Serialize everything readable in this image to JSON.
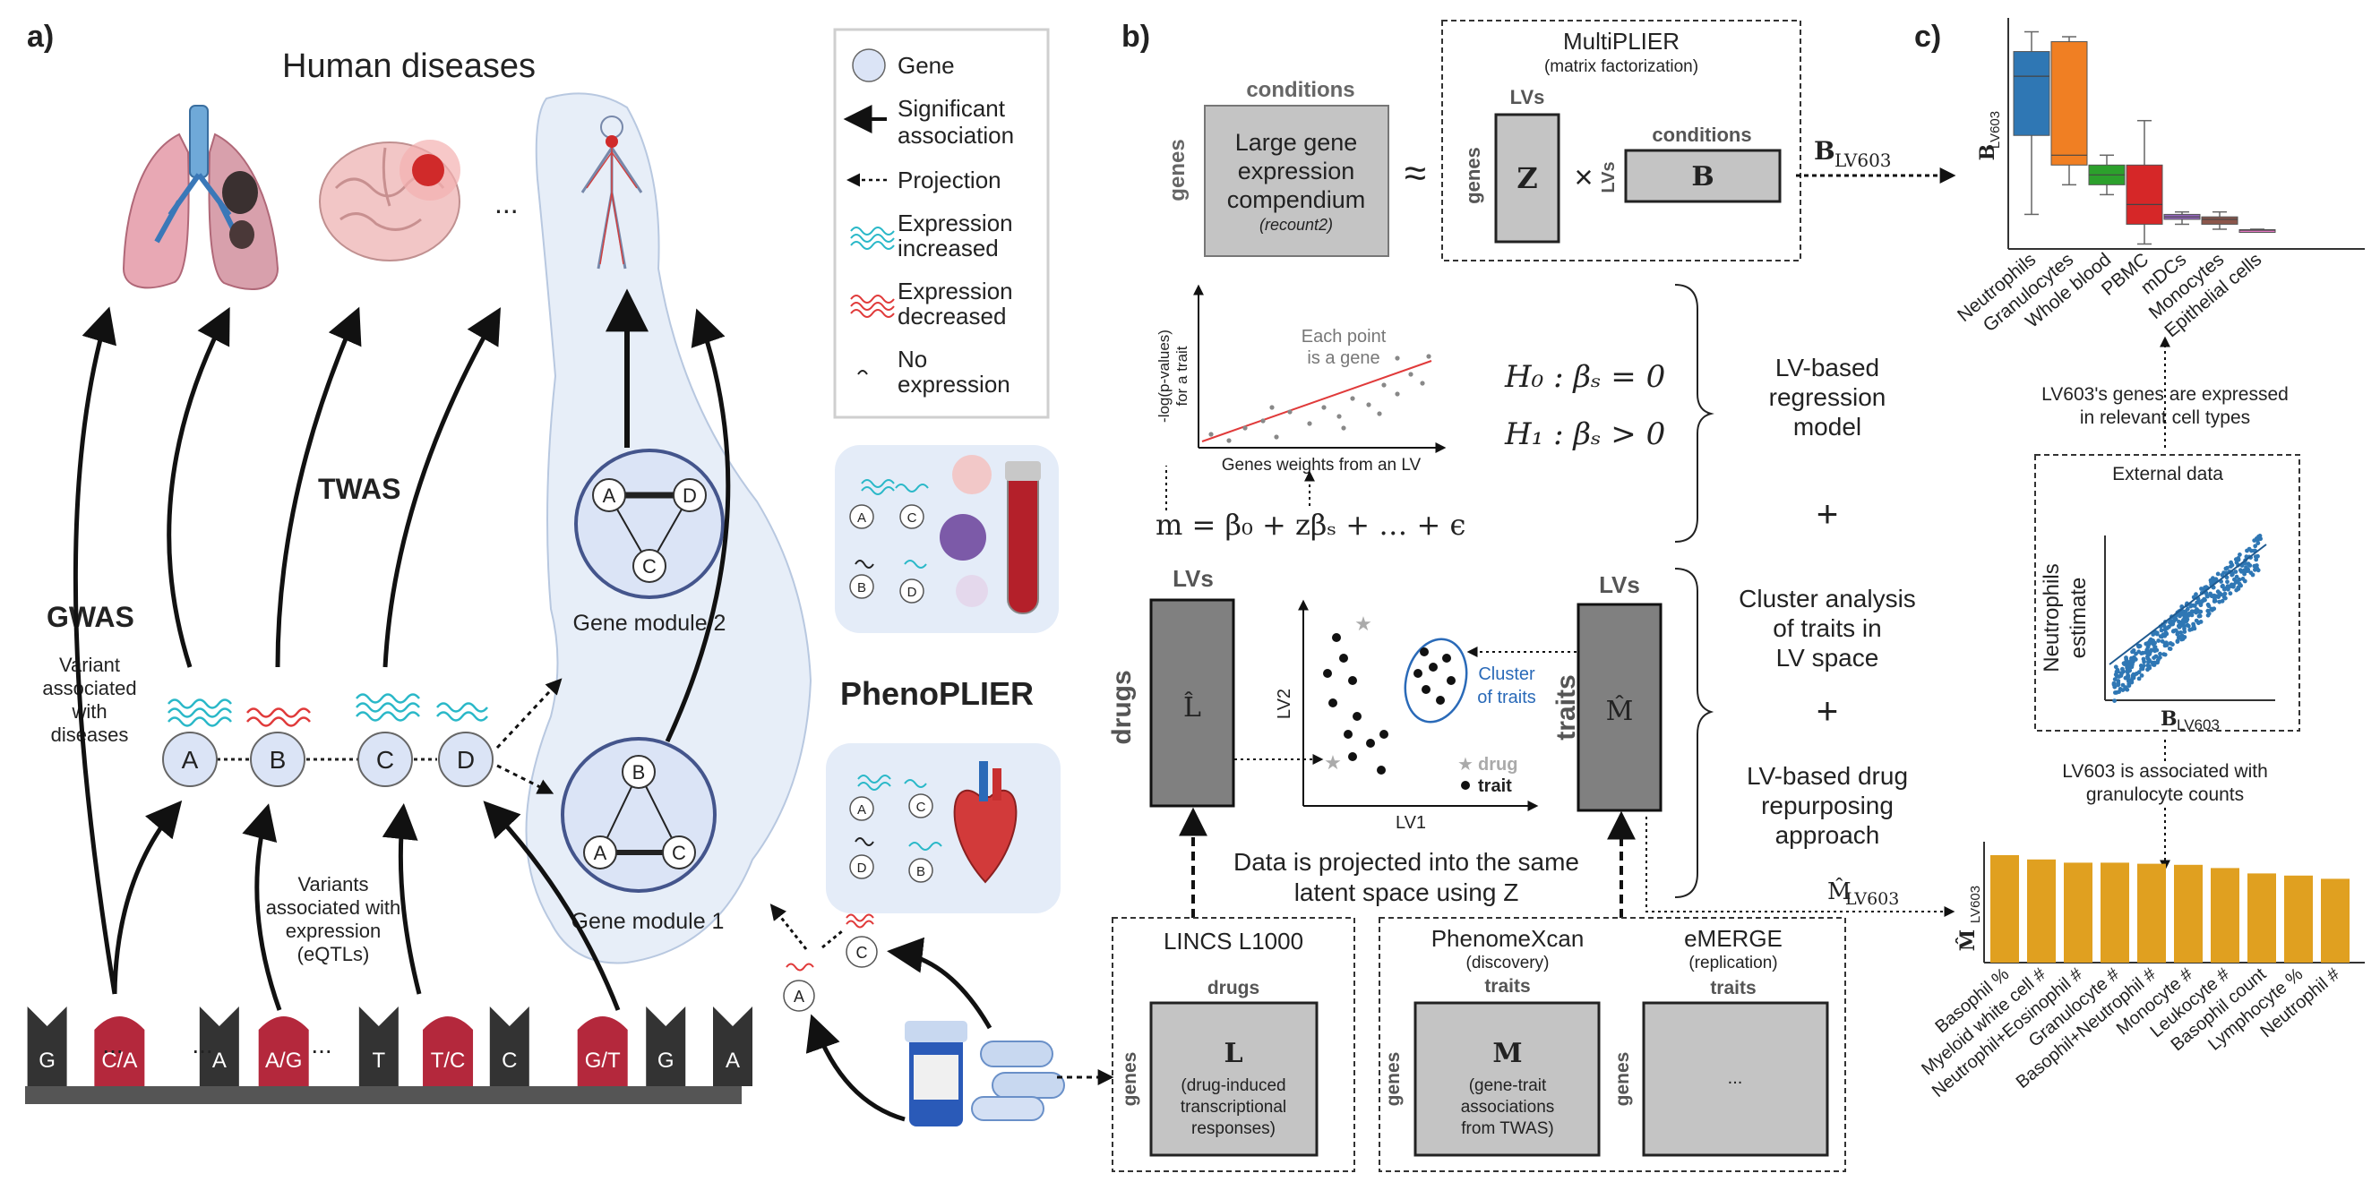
{
  "panels": {
    "a": "a)",
    "b": "b)",
    "c": "c)"
  },
  "panel_a": {
    "title": "Human diseases",
    "ellipsis": "...",
    "gwas": "GWAS",
    "twas": "TWAS",
    "variant_associated": [
      "Variant",
      "associated",
      "with",
      "diseases"
    ],
    "variants_eqtl": [
      "Variants",
      "associated with",
      "expression",
      "(eQTLs)"
    ],
    "genes": [
      "A",
      "B",
      "C",
      "D"
    ],
    "genome": [
      "G",
      "C/A",
      "...",
      "A",
      "A/G",
      "...",
      "T",
      "T/C",
      "C",
      "...",
      "G/T",
      "G",
      "A"
    ],
    "module1": {
      "label": "Gene module 1",
      "genes": [
        "B",
        "A",
        "C"
      ]
    },
    "module2": {
      "label": "Gene module 2",
      "genes": [
        "A",
        "D",
        "C"
      ]
    },
    "phenoplier": "PhenoPLIER",
    "legend": [
      {
        "icon": "gene-circle-icon",
        "lines": [
          "Gene"
        ]
      },
      {
        "icon": "solid-arrow-icon",
        "lines": [
          "Significant",
          "association"
        ]
      },
      {
        "icon": "dashed-arrow-icon",
        "lines": [
          "Projection"
        ]
      },
      {
        "icon": "wave-cyan-icon",
        "lines": [
          "Expression",
          "increased"
        ]
      },
      {
        "icon": "wave-red-icon",
        "lines": [
          "Expression",
          "decreased"
        ]
      },
      {
        "icon": "squiggle-icon",
        "lines": [
          "No",
          "expression"
        ]
      }
    ],
    "tissue_genes_top": [
      "A",
      "C",
      "B",
      "D"
    ],
    "tissue_genes_bottom": [
      "A",
      "C",
      "D",
      "B"
    ],
    "drug_genes": [
      "C",
      "A"
    ]
  },
  "panel_b": {
    "conditions_label": "conditions",
    "genes_label": "genes",
    "compendium": [
      "Large gene",
      "expression",
      "compendium"
    ],
    "compendium_sub": "(recount2)",
    "approx": "≈",
    "multiplier_title": "MultiPLIER",
    "multiplier_sub": "(matrix factorization)",
    "lvs": "LVs",
    "z": "Z",
    "times": "×",
    "b": "B",
    "b_lv603": "B",
    "lv603_sub": "LV603",
    "regression": {
      "ylabel": [
        "-log(p-values)",
        "for a trait"
      ],
      "xlabel": "Genes weights from an LV",
      "note": [
        "Each point",
        "is a gene"
      ],
      "equation": "m = β₀ + zβₛ + … + ϵ"
    },
    "hypotheses": [
      "H₀ : βₛ = 0",
      "H₁ : βₛ > 0"
    ],
    "lv_regression": [
      "LV-based",
      "regression",
      "model"
    ],
    "plus": "+",
    "cluster_analysis": [
      "Cluster analysis",
      "of traits in",
      "LV space"
    ],
    "drug_repurposing": [
      "LV-based drug",
      "repurposing",
      "approach"
    ],
    "drugs": "drugs",
    "traits": "traits",
    "L_hat": "L̂",
    "M_hat": "M̂",
    "scatter": {
      "xlabel": "LV1",
      "ylabel": "LV2",
      "cluster": [
        "Cluster",
        "of traits"
      ],
      "legend_drug": "drug",
      "legend_trait": "trait"
    },
    "projection_text": [
      "Data is projected into the same",
      "latent space using Z"
    ],
    "m_lv603": "M̂",
    "lincs": {
      "title": "LINCS L1000",
      "cols": "drugs",
      "rows": "genes",
      "letter": "L",
      "desc": [
        "(drug-induced",
        "transcriptional",
        "responses)"
      ]
    },
    "phenomexcan": {
      "title": "PhenomeXcan",
      "sub": "(discovery)",
      "cols": "traits",
      "rows": "genes",
      "letter": "M",
      "desc": [
        "(gene-trait",
        "associations",
        "from TWAS)"
      ]
    },
    "emerge": {
      "title": "eMERGE",
      "sub": "(replication)",
      "cols": "traits",
      "rows": "genes",
      "dots": "..."
    }
  },
  "panel_c": {
    "boxplot_ylabel": "B",
    "boxplot_ysub": "LV603",
    "expressed_text": [
      "LV603's genes are expressed",
      "in relevant cell types"
    ],
    "external_title": "External data",
    "scatter_ylabel": [
      "Neutrophils",
      "estimate"
    ],
    "scatter_xlabel": "B",
    "scatter_xsub": "LV603",
    "associated_text": [
      "LV603 is associated with",
      "granulocyte counts"
    ],
    "bar_ylabel": "M̂",
    "bar_ysub": "LV603"
  },
  "chart_data": [
    {
      "type": "box",
      "categories": [
        "Neutrophils",
        "Granulocytes",
        "Whole blood",
        "PBMC",
        "mDCs",
        "Monocytes",
        "Epithelial cells"
      ],
      "colors": [
        "#2f77b4",
        "#f07f23",
        "#2ca02c",
        "#d62728",
        "#9467bd",
        "#8c564b",
        "#e377c2"
      ],
      "boxes": [
        {
          "min": 0.62,
          "q1": 0.78,
          "median": 0.9,
          "q3": 0.95,
          "max": 0.99
        },
        {
          "min": 0.68,
          "q1": 0.72,
          "median": 0.74,
          "q3": 0.97,
          "max": 0.98
        },
        {
          "min": 0.66,
          "q1": 0.68,
          "median": 0.7,
          "q3": 0.72,
          "max": 0.74
        },
        {
          "min": 0.56,
          "q1": 0.6,
          "median": 0.64,
          "q3": 0.72,
          "max": 0.81
        },
        {
          "min": 0.6,
          "q1": 0.61,
          "median": 0.615,
          "q3": 0.62,
          "max": 0.625
        },
        {
          "min": 0.59,
          "q1": 0.6,
          "median": 0.61,
          "q3": 0.615,
          "max": 0.625
        },
        {
          "min": 0.585,
          "q1": 0.587,
          "median": 0.588,
          "q3": 0.589,
          "max": 0.59
        }
      ]
    },
    {
      "type": "scatter",
      "trend": "strong positive linear correlation"
    },
    {
      "type": "bar",
      "categories": [
        "Basophil %",
        "Myeloid white cell #",
        "Neutrophil+Eosinophil #",
        "Granulocyte #",
        "Basophil+Neutrophil #",
        "Monocyte #",
        "Leukocyte #",
        "Basophil count",
        "Lymphocyte %",
        "Neutrophil #"
      ],
      "values": [
        1.0,
        0.96,
        0.93,
        0.93,
        0.92,
        0.91,
        0.88,
        0.83,
        0.81,
        0.78
      ],
      "color": "#e0a020"
    }
  ]
}
